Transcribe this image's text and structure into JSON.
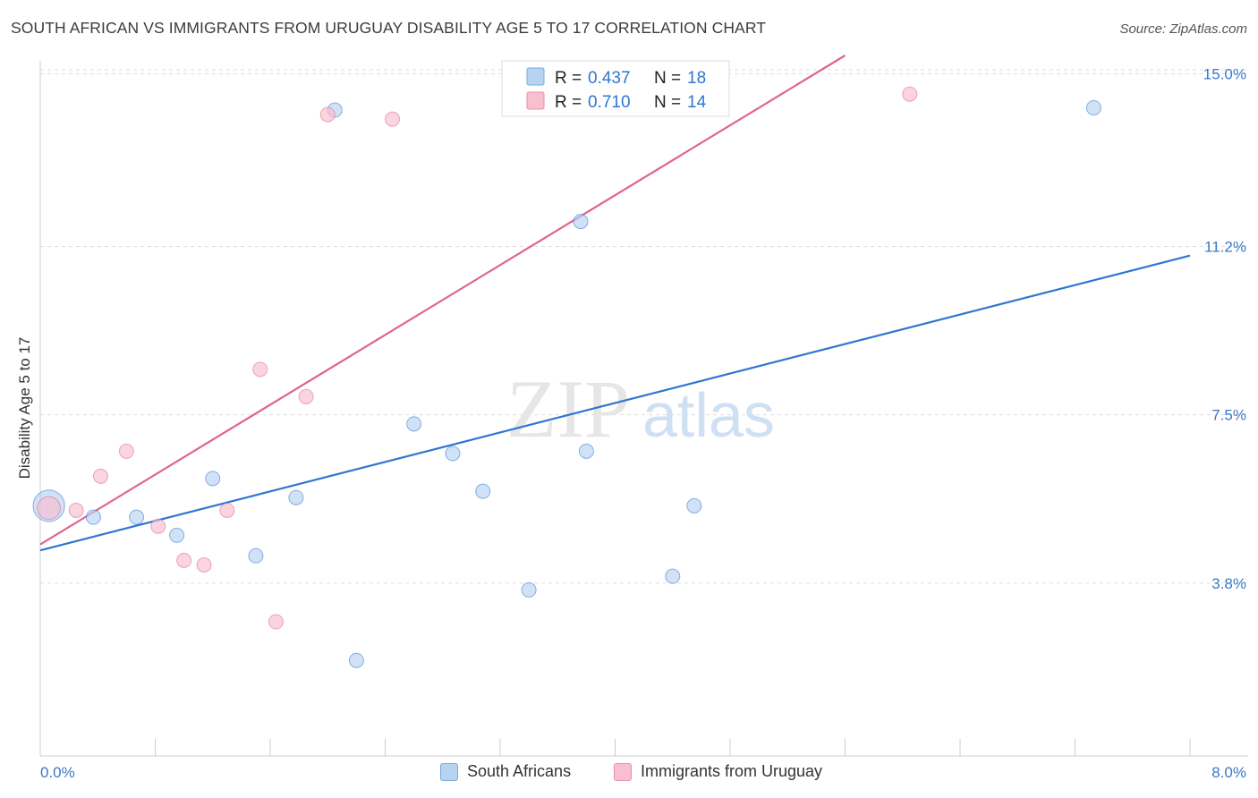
{
  "title": "SOUTH AFRICAN VS IMMIGRANTS FROM URUGUAY DISABILITY AGE 5 TO 17 CORRELATION CHART",
  "source": "Source: ZipAtlas.com",
  "watermark": {
    "zip": "ZIP",
    "atlas": "atlas"
  },
  "colors": {
    "blue": "#2f76d0",
    "blue_fill": "#b8d3f2",
    "pink": "#e0658c",
    "pink_fill": "#f7bfd0",
    "tick_label": "#3b78c7",
    "grid": "#dddddd"
  },
  "legend_top": {
    "rows": [
      {
        "r_label": "R = ",
        "r_value": "0.437",
        "n_label": "N = ",
        "n_value": "18"
      },
      {
        "r_label": "R = ",
        "r_value": "0.710",
        "n_label": "N = ",
        "n_value": "14"
      }
    ]
  },
  "legend_bottom": [
    {
      "label": "South Africans"
    },
    {
      "label": "Immigrants from Uruguay"
    }
  ],
  "chart_data": {
    "type": "scatter",
    "title": "SOUTH AFRICAN VS IMMIGRANTS FROM URUGUAY DISABILITY AGE 5 TO 17 CORRELATION CHART",
    "xlabel": "",
    "ylabel": "Disability Age 5 to 17",
    "xlim": [
      0,
      8.0
    ],
    "ylim": [
      0,
      15.4
    ],
    "x_tick_labels": [
      "0.0%",
      "8.0%"
    ],
    "y_ticks": [
      3.8,
      7.5,
      11.2,
      15.0
    ],
    "y_tick_labels": [
      "3.8%",
      "7.5%",
      "11.2%",
      "15.0%"
    ],
    "grid": true,
    "legend_position": "top-center",
    "series": [
      {
        "name": "South Africans",
        "color": "blue",
        "r": 0.437,
        "n": 18,
        "points": [
          [
            0.06,
            5.5,
            2.2
          ],
          [
            0.37,
            5.25,
            1
          ],
          [
            0.67,
            5.25,
            1
          ],
          [
            0.95,
            4.85,
            1
          ],
          [
            1.2,
            6.1,
            1
          ],
          [
            1.5,
            4.4,
            1
          ],
          [
            1.78,
            5.68,
            1
          ],
          [
            2.05,
            14.2,
            1
          ],
          [
            2.2,
            2.1,
            1
          ],
          [
            2.6,
            7.3,
            1
          ],
          [
            2.87,
            6.65,
            1
          ],
          [
            3.08,
            5.82,
            1
          ],
          [
            3.4,
            3.65,
            1
          ],
          [
            3.76,
            11.75,
            1
          ],
          [
            3.8,
            6.7,
            1
          ],
          [
            4.4,
            3.95,
            1
          ],
          [
            4.55,
            5.5,
            1
          ],
          [
            7.33,
            14.25,
            1
          ]
        ],
        "trend": {
          "x": [
            0.0,
            8.0
          ],
          "y": [
            4.52,
            11.0
          ]
        }
      },
      {
        "name": "Immigrants from Uruguay",
        "color": "pink",
        "r": 0.71,
        "n": 14,
        "points": [
          [
            0.06,
            5.45,
            1.6
          ],
          [
            0.25,
            5.4,
            1
          ],
          [
            0.42,
            6.15,
            1
          ],
          [
            0.6,
            6.7,
            1
          ],
          [
            0.82,
            5.05,
            1
          ],
          [
            1.0,
            4.3,
            1
          ],
          [
            1.14,
            4.2,
            1
          ],
          [
            1.3,
            5.4,
            1
          ],
          [
            1.53,
            8.5,
            1
          ],
          [
            1.64,
            2.95,
            1
          ],
          [
            1.85,
            7.9,
            1
          ],
          [
            2.0,
            14.1,
            1
          ],
          [
            2.45,
            14.0,
            1
          ],
          [
            6.05,
            14.55,
            1
          ]
        ],
        "trend": {
          "x": [
            0.0,
            5.6
          ],
          "y": [
            4.65,
            15.4
          ]
        }
      }
    ]
  }
}
